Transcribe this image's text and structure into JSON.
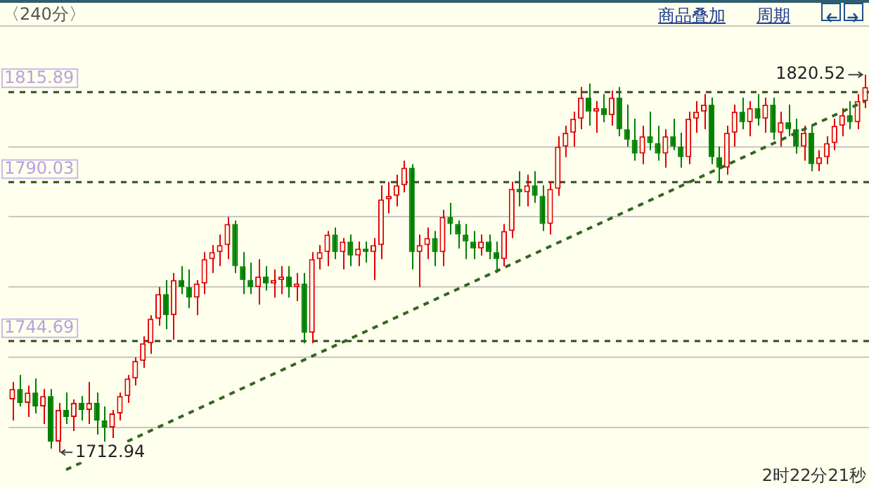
{
  "chart_data": {
    "type": "candlestick",
    "annotations": [
      "〈240分〉",
      "商品叠加",
      "周期",
      "2时22分21秒",
      "1820.52",
      "1712.94"
    ],
    "categories": [
      null,
      null,
      null,
      null,
      null,
      null,
      null,
      null,
      null,
      null,
      null,
      null,
      null,
      null,
      null,
      null,
      null,
      null,
      null,
      null,
      null,
      null,
      null,
      null,
      null,
      null,
      null,
      null,
      null,
      null,
      null,
      null,
      null,
      null,
      null,
      null,
      null,
      null,
      null,
      null,
      null,
      null,
      null,
      null,
      null,
      null,
      null,
      null,
      null,
      null,
      null,
      null,
      null,
      null,
      null,
      null,
      null,
      null,
      null,
      null,
      null,
      null,
      null,
      null,
      null,
      null,
      null,
      null,
      null,
      null,
      null,
      null,
      null,
      null,
      null,
      null,
      null,
      null,
      null,
      null,
      null,
      null,
      null,
      null,
      null,
      null,
      null,
      null,
      null,
      null,
      null,
      null,
      null,
      null,
      null,
      null,
      null,
      null,
      null,
      null,
      null,
      null,
      null,
      null,
      null,
      null,
      null,
      null,
      null,
      null,
      null,
      null
    ],
    "ohlc": [
      [
        1728,
        1733,
        1722,
        1731
      ],
      [
        1731,
        1735,
        1726,
        1727
      ],
      [
        1727,
        1732,
        1723,
        1730
      ],
      [
        1730,
        1734,
        1724,
        1726
      ],
      [
        1726,
        1731,
        1721,
        1729
      ],
      [
        1729,
        1731,
        1714,
        1716
      ],
      [
        1716,
        1727,
        1712.94,
        1725
      ],
      [
        1725,
        1730,
        1721,
        1723
      ],
      [
        1723,
        1728,
        1719,
        1727
      ],
      [
        1727,
        1729,
        1722,
        1725
      ],
      [
        1725,
        1733,
        1721,
        1727
      ],
      [
        1727,
        1730,
        1718,
        1722
      ],
      [
        1722,
        1726,
        1716,
        1720
      ],
      [
        1720,
        1725,
        1717,
        1724
      ],
      [
        1724,
        1730,
        1722,
        1729
      ],
      [
        1729,
        1735,
        1727,
        1734
      ],
      [
        1734,
        1740,
        1732,
        1739
      ],
      [
        1739,
        1746,
        1737,
        1744
      ],
      [
        1744,
        1752,
        1741,
        1751
      ],
      [
        1751,
        1760,
        1749,
        1758
      ],
      [
        1758,
        1762,
        1748,
        1752
      ],
      [
        1752,
        1764,
        1745,
        1762
      ],
      [
        1762,
        1766,
        1758,
        1760
      ],
      [
        1760,
        1765,
        1754,
        1757
      ],
      [
        1757,
        1762,
        1752,
        1761
      ],
      [
        1761,
        1770,
        1758,
        1768
      ],
      [
        1768,
        1772,
        1764,
        1770
      ],
      [
        1770,
        1775,
        1766,
        1772
      ],
      [
        1772,
        1780,
        1768,
        1778
      ],
      [
        1778,
        1779,
        1764,
        1766
      ],
      [
        1766,
        1770,
        1758,
        1762
      ],
      [
        1762,
        1767,
        1758,
        1760
      ],
      [
        1760,
        1768,
        1755,
        1763
      ],
      [
        1763,
        1766,
        1759,
        1761
      ],
      [
        1761,
        1765,
        1757,
        1762
      ],
      [
        1762,
        1766,
        1758,
        1763
      ],
      [
        1763,
        1766,
        1757,
        1760
      ],
      [
        1760,
        1764,
        1756,
        1761
      ],
      [
        1761,
        1764,
        1744,
        1747
      ],
      [
        1747,
        1770,
        1744,
        1768
      ],
      [
        1768,
        1772,
        1765,
        1770
      ],
      [
        1770,
        1776,
        1766,
        1775
      ],
      [
        1775,
        1777,
        1768,
        1770
      ],
      [
        1770,
        1774,
        1765,
        1773
      ],
      [
        1773,
        1775,
        1766,
        1769
      ],
      [
        1769,
        1773,
        1766,
        1771
      ],
      [
        1771,
        1773,
        1767,
        1770
      ],
      [
        1770,
        1774,
        1762,
        1772
      ],
      [
        1772,
        1789,
        1768,
        1785
      ],
      [
        1785,
        1790,
        1781,
        1786
      ],
      [
        1786,
        1792,
        1783,
        1789
      ],
      [
        1789,
        1796,
        1787,
        1794
      ],
      [
        1794,
        1795,
        1765,
        1770
      ],
      [
        1770,
        1775,
        1760,
        1772
      ],
      [
        1772,
        1777,
        1768,
        1774
      ],
      [
        1774,
        1776,
        1766,
        1770
      ],
      [
        1770,
        1782,
        1766,
        1780
      ],
      [
        1780,
        1784,
        1775,
        1778
      ],
      [
        1778,
        1779,
        1771,
        1775
      ],
      [
        1775,
        1778,
        1768,
        1773
      ],
      [
        1773,
        1776,
        1768,
        1771
      ],
      [
        1771,
        1775,
        1769,
        1773
      ],
      [
        1773,
        1775,
        1768,
        1770
      ],
      [
        1770,
        1773,
        1764,
        1768
      ],
      [
        1768,
        1778,
        1766,
        1776
      ],
      [
        1776,
        1790,
        1774,
        1788
      ],
      [
        1788,
        1793,
        1783,
        1787
      ],
      [
        1787,
        1792,
        1783,
        1789
      ],
      [
        1789,
        1793,
        1784,
        1786
      ],
      [
        1786,
        1789,
        1776,
        1778
      ],
      [
        1778,
        1790,
        1775,
        1788
      ],
      [
        1788,
        1803,
        1786,
        1800
      ],
      [
        1800,
        1806,
        1797,
        1804
      ],
      [
        1804,
        1810,
        1800,
        1808
      ],
      [
        1808,
        1817,
        1805,
        1814
      ],
      [
        1814,
        1818,
        1806,
        1810
      ],
      [
        1810,
        1813,
        1804,
        1811
      ],
      [
        1811,
        1815,
        1807,
        1809
      ],
      [
        1809,
        1816,
        1806,
        1814
      ],
      [
        1814,
        1817,
        1803,
        1805
      ],
      [
        1805,
        1812,
        1800,
        1802
      ],
      [
        1802,
        1808,
        1796,
        1798
      ],
      [
        1798,
        1806,
        1795,
        1803
      ],
      [
        1803,
        1810,
        1799,
        1801
      ],
      [
        1801,
        1806,
        1796,
        1798
      ],
      [
        1798,
        1805,
        1794,
        1803
      ],
      [
        1803,
        1808,
        1799,
        1800
      ],
      [
        1800,
        1804,
        1794,
        1797
      ],
      [
        1797,
        1810,
        1795,
        1808
      ],
      [
        1808,
        1813,
        1804,
        1810
      ],
      [
        1810,
        1815,
        1805,
        1812
      ],
      [
        1812,
        1814,
        1795,
        1797
      ],
      [
        1797,
        1800,
        1790,
        1794
      ],
      [
        1794,
        1806,
        1792,
        1804
      ],
      [
        1804,
        1812,
        1800,
        1810
      ],
      [
        1810,
        1814,
        1805,
        1807
      ],
      [
        1807,
        1813,
        1803,
        1811
      ],
      [
        1811,
        1815,
        1806,
        1808
      ],
      [
        1808,
        1814,
        1804,
        1812
      ],
      [
        1812,
        1814,
        1802,
        1804
      ],
      [
        1804,
        1810,
        1800,
        1807
      ],
      [
        1807,
        1812,
        1803,
        1805
      ],
      [
        1805,
        1808,
        1798,
        1800
      ],
      [
        1800,
        1806,
        1796,
        1804
      ],
      [
        1804,
        1806,
        1793,
        1795
      ],
      [
        1795,
        1799,
        1793,
        1797
      ],
      [
        1797,
        1803,
        1795,
        1801
      ],
      [
        1801,
        1808,
        1799,
        1806
      ],
      [
        1806,
        1811,
        1803,
        1809
      ],
      [
        1809,
        1813,
        1805,
        1807
      ],
      [
        1807,
        1815,
        1805,
        1813
      ],
      [
        1813,
        1820.52,
        1811,
        1817
      ]
    ],
    "series": [
      {
        "type": "line",
        "color": "#336622",
        "line_style": "dashed",
        "values": [
          null,
          null,
          null,
          null,
          null,
          null,
          null,
          1708,
          null,
          null,
          null,
          null,
          null,
          null,
          null,
          null,
          null,
          null,
          null,
          null,
          null,
          null,
          null,
          null,
          null,
          null,
          null,
          null,
          null,
          null,
          null,
          null,
          null,
          null,
          null,
          null,
          null,
          null,
          null,
          null,
          null,
          null,
          null,
          null,
          null,
          null,
          null,
          null,
          null,
          null,
          null,
          null,
          null,
          null,
          null,
          null,
          null,
          null,
          null,
          null,
          null,
          null,
          null,
          null,
          null,
          null,
          null,
          null,
          null,
          null,
          null,
          null,
          null,
          null,
          null,
          null,
          null,
          null,
          null,
          null,
          null,
          null,
          null,
          null,
          null,
          null,
          null,
          null,
          null,
          null,
          null,
          null,
          null,
          null,
          null,
          null,
          null,
          null,
          null,
          null,
          null,
          null,
          null,
          null,
          null,
          null,
          null,
          null,
          null,
          null,
          null,
          1813
        ]
      }
    ],
    "ref_lines": [
      {
        "axis": "y",
        "value": 1815.89,
        "label": "1815.89",
        "color": "#2f4a1f",
        "line_style": "dashed"
      },
      {
        "axis": "y",
        "value": 1790.03,
        "label": "1790.03",
        "color": "#2f4a1f",
        "line_style": "dashed"
      },
      {
        "axis": "y",
        "value": 1744.69,
        "label": "1744.69",
        "color": "#2f4a1f",
        "line_style": "dashed"
      }
    ],
    "yticks": [
      {
        "value": 1720,
        "label": null
      },
      {
        "value": 1740,
        "label": null
      },
      {
        "value": 1760,
        "label": null
      },
      {
        "value": 1780,
        "label": null
      },
      {
        "value": 1800,
        "label": null
      }
    ],
    "grid": "y",
    "legend": false
  }
}
